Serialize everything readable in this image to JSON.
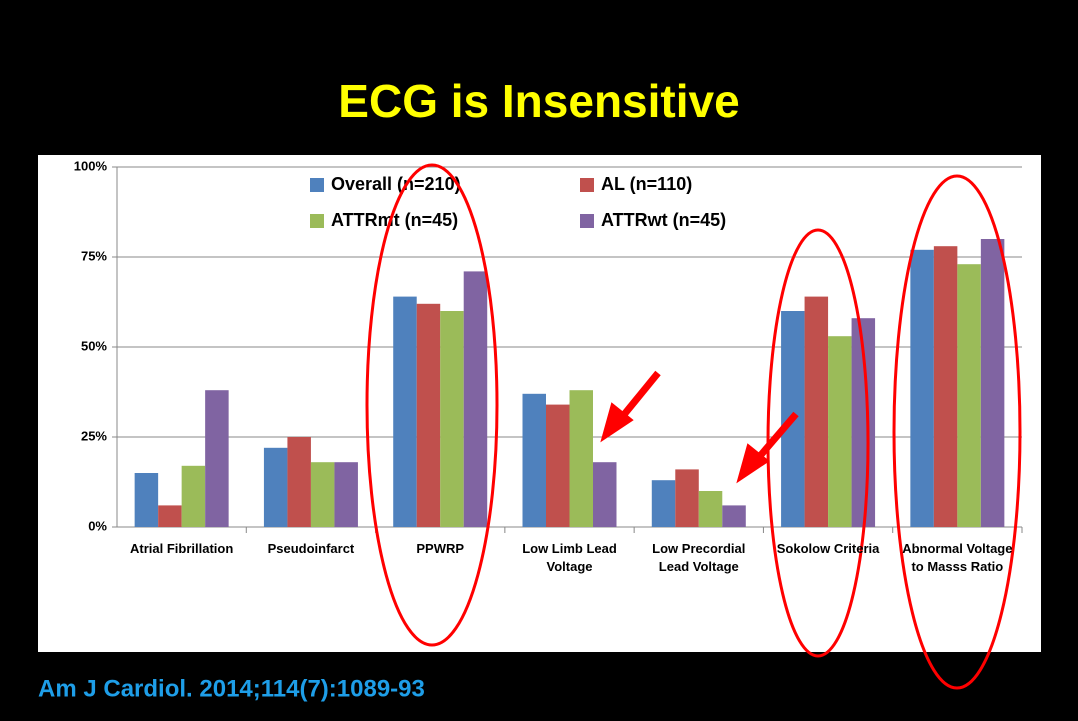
{
  "chart_data": {
    "type": "bar",
    "title": "ECG is Insensitive",
    "source": "Am J Cardiol. 2014;114(7):1089-93",
    "categories": [
      "Atrial Fibrillation",
      "Pseudoinfarct",
      "PPWRP",
      "Low Limb Lead Voltage",
      "Low Precordial Lead Voltage",
      "Sokolow Criteria",
      "Abnormal Voltage to Masss Ratio"
    ],
    "series": [
      {
        "name": "Overall (n=210)",
        "color": "#4f81bd",
        "values": [
          15,
          22,
          64,
          37,
          13,
          60,
          77
        ]
      },
      {
        "name": "AL (n=110)",
        "color": "#c0504d",
        "values": [
          6,
          25,
          62,
          34,
          16,
          64,
          78
        ]
      },
      {
        "name": "ATTRmt (n=45)",
        "color": "#9bbb59",
        "values": [
          17,
          18,
          60,
          38,
          10,
          53,
          73
        ]
      },
      {
        "name": "ATTRwt (n=45)",
        "color": "#8064a2",
        "values": [
          38,
          18,
          71,
          18,
          6,
          58,
          80
        ]
      }
    ],
    "ylim": [
      0,
      100
    ],
    "yticks": [
      {
        "value": 0,
        "label": "0%"
      },
      {
        "value": 25,
        "label": "25%"
      },
      {
        "value": 50,
        "label": "50%"
      },
      {
        "value": 75,
        "label": "75%"
      },
      {
        "value": 100,
        "label": "100%"
      }
    ],
    "grid": true,
    "legend": "top"
  }
}
